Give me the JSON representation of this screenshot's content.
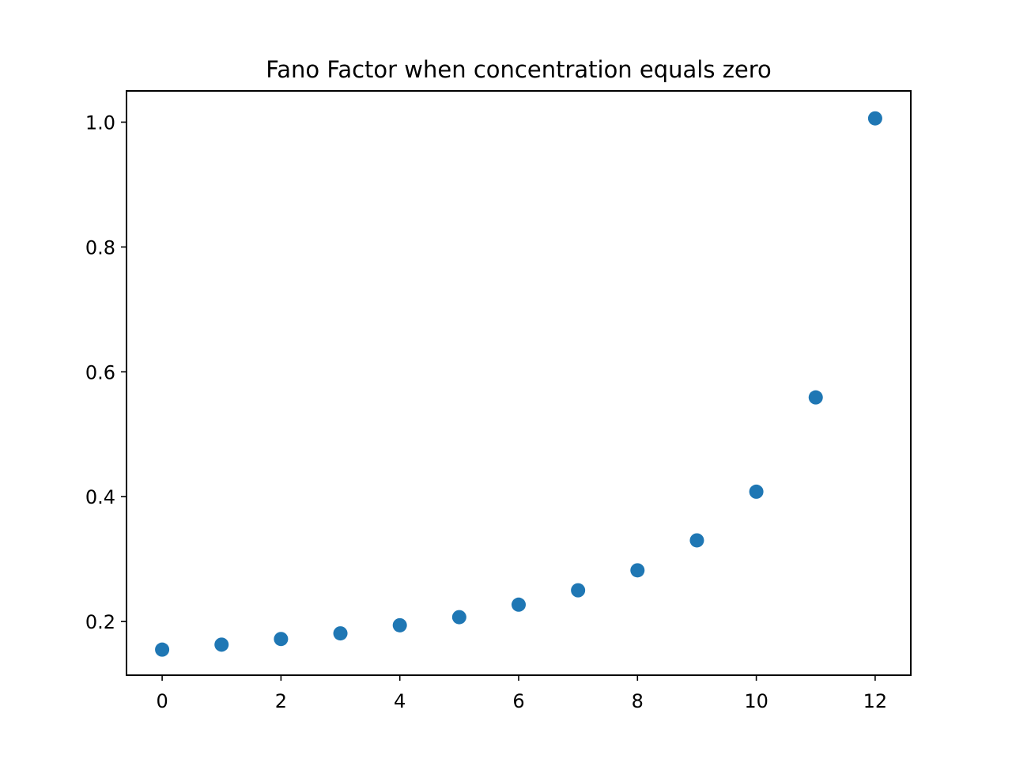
{
  "chart_data": {
    "type": "scatter",
    "title": "Fano Factor when concentration equals zero",
    "xlabel": "",
    "ylabel": "",
    "x": [
      0,
      1,
      2,
      3,
      4,
      5,
      6,
      7,
      8,
      9,
      10,
      11,
      12
    ],
    "y": [
      0.155,
      0.163,
      0.172,
      0.181,
      0.194,
      0.207,
      0.227,
      0.25,
      0.282,
      0.33,
      0.408,
      0.559,
      1.006
    ],
    "xlim": [
      -0.6,
      12.6
    ],
    "ylim": [
      0.114,
      1.05
    ],
    "xticks": [
      0,
      2,
      4,
      6,
      8,
      10,
      12
    ],
    "xtick_labels": [
      "0",
      "2",
      "4",
      "6",
      "8",
      "10",
      "12"
    ],
    "yticks": [
      0.2,
      0.4,
      0.6,
      0.8,
      1.0
    ],
    "ytick_labels": [
      "0.2",
      "0.4",
      "0.6",
      "0.8",
      "1.0"
    ],
    "grid": false,
    "marker_color": "#1f77b4"
  }
}
